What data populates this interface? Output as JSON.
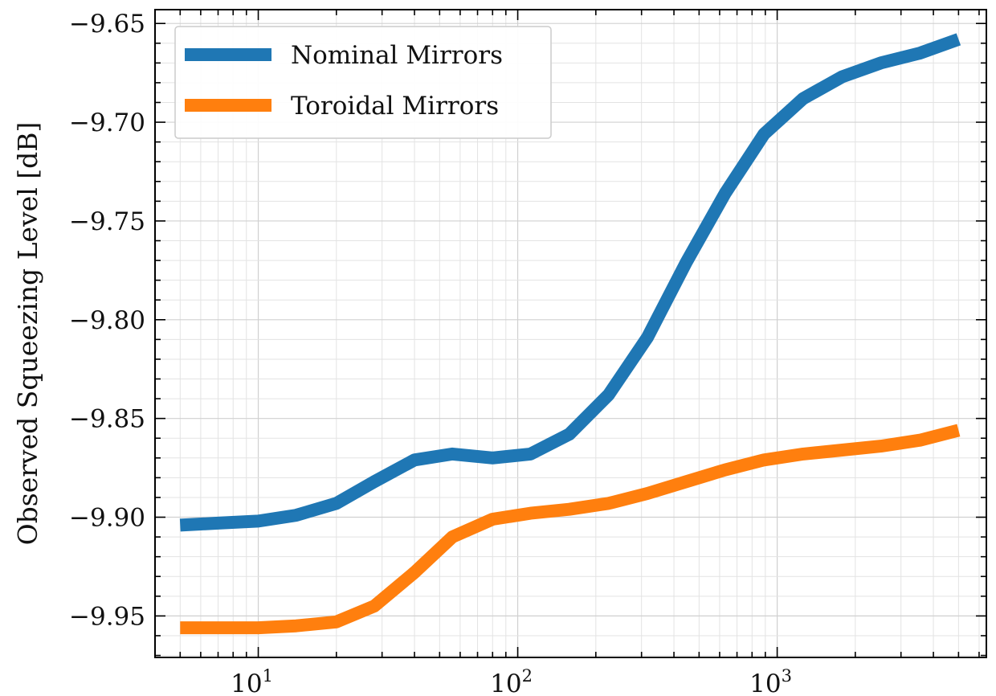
{
  "chart_data": {
    "type": "line",
    "title": "",
    "xlabel": "",
    "ylabel": "Observed Squeezing Level [dB]",
    "xscale": "log",
    "xlim": [
      4.0,
      6400
    ],
    "ylim": [
      -9.971,
      -9.643
    ],
    "grid": true,
    "legend_position": "top-left",
    "y_ticks": [
      {
        "value": -9.65,
        "label": "−9.65"
      },
      {
        "value": -9.7,
        "label": "−9.70"
      },
      {
        "value": -9.75,
        "label": "−9.75"
      },
      {
        "value": -9.8,
        "label": "−9.80"
      },
      {
        "value": -9.85,
        "label": "−9.85"
      },
      {
        "value": -9.9,
        "label": "−9.90"
      },
      {
        "value": -9.95,
        "label": "−9.95"
      }
    ],
    "x_ticks": [
      {
        "value": 10,
        "base": "10",
        "exp": "1"
      },
      {
        "value": 100,
        "base": "10",
        "exp": "2"
      },
      {
        "value": 1000,
        "base": "10",
        "exp": "3"
      }
    ],
    "series": [
      {
        "name": "Nominal Mirrors",
        "color": "#1f77b4",
        "x": [
          5,
          7,
          10,
          14,
          20,
          28,
          40,
          56,
          80,
          112,
          158,
          224,
          316,
          446,
          630,
          890,
          1260,
          1780,
          2510,
          3550,
          5000
        ],
        "y": [
          -9.904,
          -9.903,
          -9.902,
          -9.899,
          -9.893,
          -9.882,
          -9.871,
          -9.868,
          -9.87,
          -9.868,
          -9.858,
          -9.838,
          -9.809,
          -9.771,
          -9.736,
          -9.706,
          -9.688,
          -9.677,
          -9.67,
          -9.665,
          -9.658
        ]
      },
      {
        "name": "Toroidal Mirrors",
        "color": "#ff7f0e",
        "x": [
          5,
          7,
          10,
          14,
          20,
          28,
          40,
          56,
          80,
          112,
          158,
          224,
          316,
          446,
          630,
          890,
          1260,
          1780,
          2510,
          3550,
          5000
        ],
        "y": [
          -9.956,
          -9.956,
          -9.956,
          -9.955,
          -9.953,
          -9.945,
          -9.928,
          -9.91,
          -9.901,
          -9.898,
          -9.896,
          -9.893,
          -9.888,
          -9.882,
          -9.876,
          -9.871,
          -9.868,
          -9.866,
          -9.864,
          -9.861,
          -9.856
        ]
      }
    ]
  }
}
